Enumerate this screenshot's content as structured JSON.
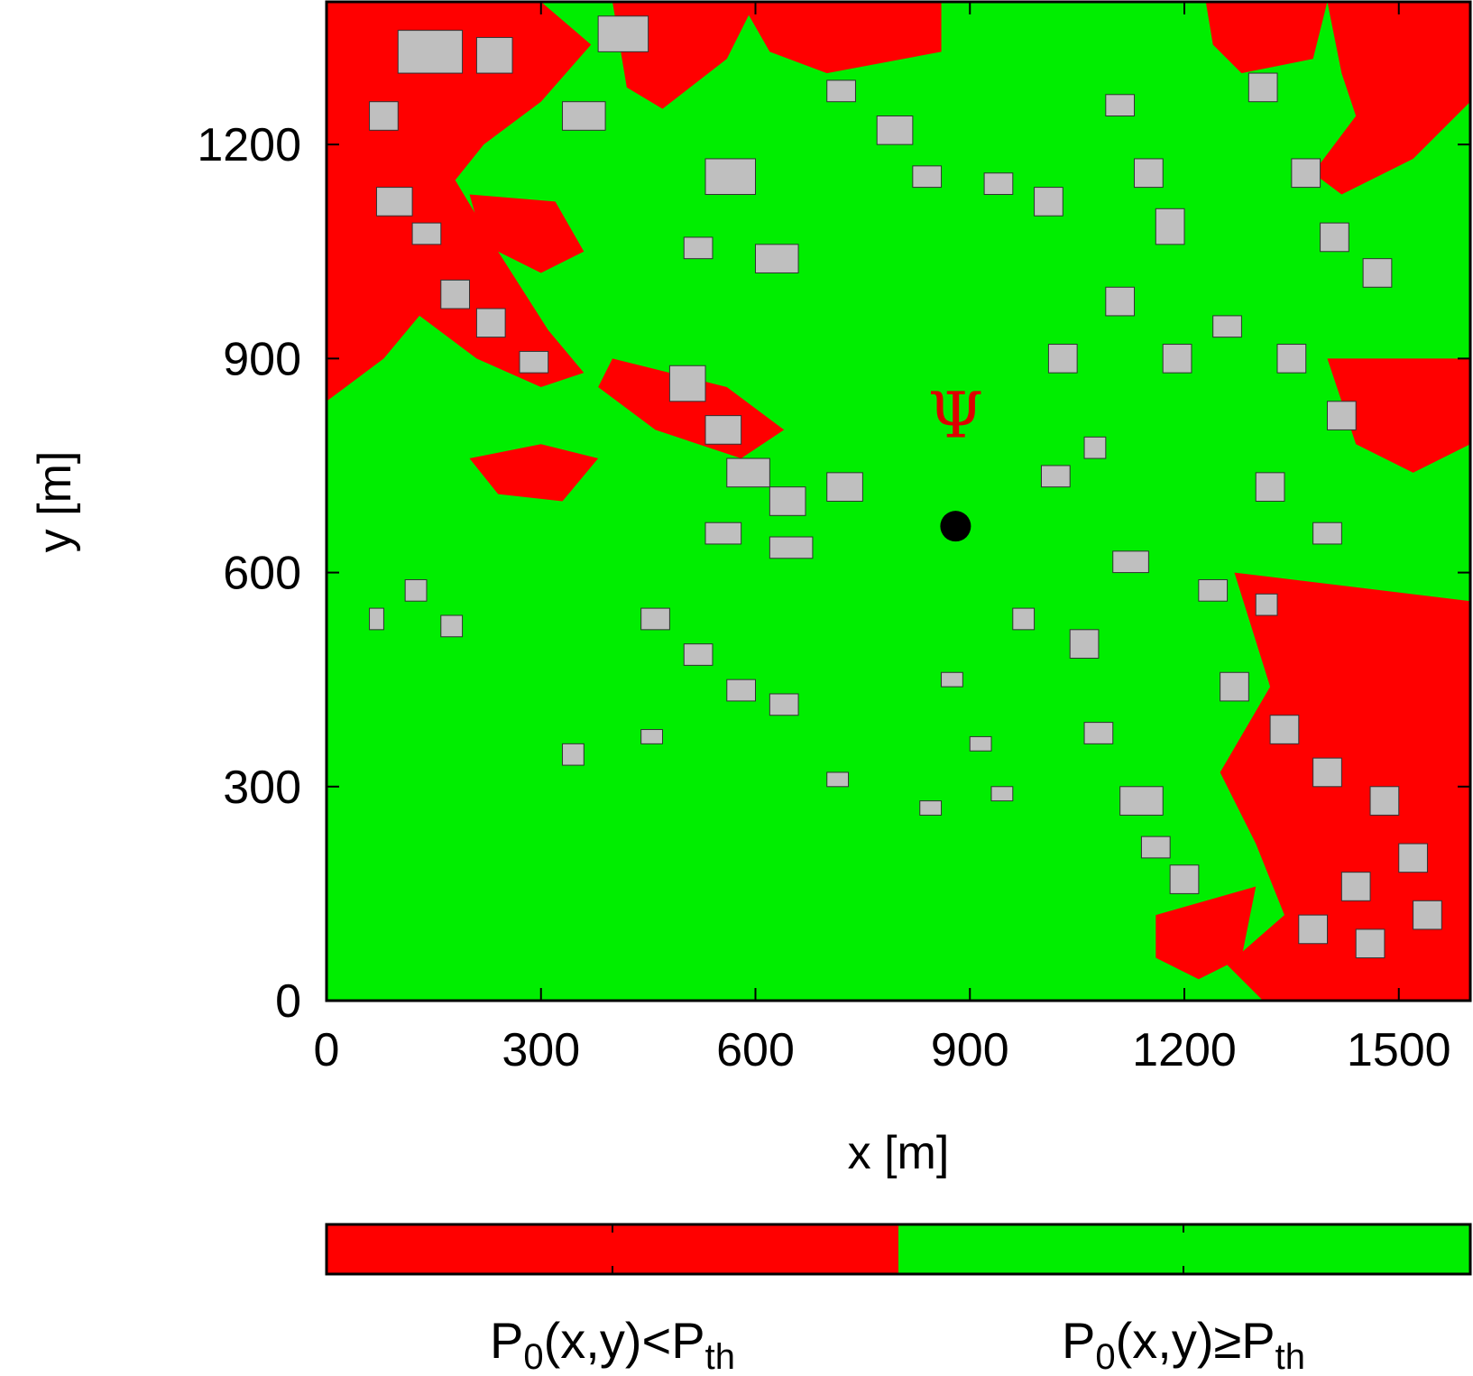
{
  "colors": {
    "below": "#ff0000",
    "above": "#00ee00",
    "building": "#bfbfbf",
    "building_edge": "#333333",
    "transmitter": "#000000",
    "psi": "#dd0000"
  },
  "chart_data": {
    "type": "heatmap",
    "title": "",
    "xlabel": "x [m]",
    "ylabel": "y [m]",
    "xlim": [
      0,
      1600
    ],
    "ylim": [
      0,
      1400
    ],
    "x_ticks": [
      0,
      300,
      600,
      900,
      1200,
      1500
    ],
    "y_ticks": [
      0,
      300,
      600,
      900,
      1200
    ],
    "x_tick_labels": [
      "0",
      "300",
      "600",
      "900",
      "1200",
      "1500"
    ],
    "y_tick_labels": [
      "0",
      "300",
      "600",
      "900",
      "1200"
    ],
    "grid": false,
    "transmitter": {
      "x": 880,
      "y": 665
    },
    "psi_label": {
      "text": "Ψ",
      "x": 880,
      "y": 790
    },
    "red_regions": [
      [
        [
          0,
          1400
        ],
        [
          300,
          1400
        ],
        [
          370,
          1340
        ],
        [
          300,
          1260
        ],
        [
          220,
          1200
        ],
        [
          180,
          1150
        ],
        [
          240,
          1050
        ],
        [
          310,
          940
        ],
        [
          360,
          880
        ],
        [
          300,
          860
        ],
        [
          210,
          900
        ],
        [
          130,
          960
        ],
        [
          80,
          900
        ],
        [
          0,
          840
        ]
      ],
      [
        [
          400,
          1400
        ],
        [
          600,
          1400
        ],
        [
          560,
          1320
        ],
        [
          470,
          1250
        ],
        [
          420,
          1280
        ]
      ],
      [
        [
          200,
          1130
        ],
        [
          320,
          1120
        ],
        [
          360,
          1050
        ],
        [
          300,
          1020
        ],
        [
          220,
          1060
        ]
      ],
      [
        [
          400,
          900
        ],
        [
          560,
          860
        ],
        [
          640,
          800
        ],
        [
          580,
          760
        ],
        [
          460,
          800
        ],
        [
          380,
          860
        ]
      ],
      [
        [
          200,
          760
        ],
        [
          300,
          780
        ],
        [
          380,
          760
        ],
        [
          330,
          700
        ],
        [
          240,
          710
        ]
      ],
      [
        [
          580,
          1400
        ],
        [
          860,
          1400
        ],
        [
          860,
          1330
        ],
        [
          700,
          1300
        ],
        [
          620,
          1330
        ]
      ],
      [
        [
          1230,
          1400
        ],
        [
          1400,
          1400
        ],
        [
          1380,
          1320
        ],
        [
          1280,
          1300
        ],
        [
          1240,
          1340
        ]
      ],
      [
        [
          1400,
          1400
        ],
        [
          1600,
          1400
        ],
        [
          1600,
          1260
        ],
        [
          1520,
          1180
        ],
        [
          1420,
          1130
        ],
        [
          1380,
          1160
        ],
        [
          1440,
          1240
        ],
        [
          1420,
          1300
        ]
      ],
      [
        [
          1400,
          900
        ],
        [
          1600,
          900
        ],
        [
          1600,
          780
        ],
        [
          1520,
          740
        ],
        [
          1440,
          780
        ]
      ],
      [
        [
          1270,
          600
        ],
        [
          1600,
          560
        ],
        [
          1600,
          0
        ],
        [
          1310,
          0
        ],
        [
          1260,
          50
        ],
        [
          1340,
          120
        ],
        [
          1300,
          220
        ],
        [
          1250,
          320
        ],
        [
          1320,
          440
        ]
      ],
      [
        [
          1160,
          120
        ],
        [
          1300,
          160
        ],
        [
          1280,
          60
        ],
        [
          1220,
          30
        ],
        [
          1160,
          60
        ]
      ]
    ],
    "buildings": [
      [
        100,
        1300,
        90,
        60
      ],
      [
        210,
        1300,
        50,
        50
      ],
      [
        380,
        1330,
        70,
        50
      ],
      [
        330,
        1220,
        60,
        40
      ],
      [
        60,
        1220,
        40,
        40
      ],
      [
        70,
        1100,
        50,
        40
      ],
      [
        120,
        1060,
        40,
        30
      ],
      [
        160,
        970,
        40,
        40
      ],
      [
        210,
        930,
        40,
        40
      ],
      [
        270,
        880,
        40,
        30
      ],
      [
        530,
        1130,
        70,
        50
      ],
      [
        500,
        1040,
        40,
        30
      ],
      [
        600,
        1020,
        60,
        40
      ],
      [
        700,
        1260,
        40,
        30
      ],
      [
        770,
        1200,
        50,
        40
      ],
      [
        820,
        1140,
        40,
        30
      ],
      [
        920,
        1130,
        40,
        30
      ],
      [
        990,
        1100,
        40,
        40
      ],
      [
        1090,
        1240,
        40,
        30
      ],
      [
        1130,
        1140,
        40,
        40
      ],
      [
        1160,
        1060,
        40,
        50
      ],
      [
        1290,
        1260,
        40,
        40
      ],
      [
        1350,
        1140,
        40,
        40
      ],
      [
        1390,
        1050,
        40,
        40
      ],
      [
        1450,
        1000,
        40,
        40
      ],
      [
        1240,
        930,
        40,
        30
      ],
      [
        1330,
        880,
        40,
        40
      ],
      [
        1400,
        800,
        40,
        40
      ],
      [
        480,
        840,
        50,
        50
      ],
      [
        530,
        780,
        50,
        40
      ],
      [
        560,
        720,
        60,
        40
      ],
      [
        620,
        680,
        50,
        40
      ],
      [
        700,
        700,
        50,
        40
      ],
      [
        530,
        640,
        50,
        30
      ],
      [
        620,
        620,
        60,
        30
      ],
      [
        1010,
        880,
        40,
        40
      ],
      [
        1090,
        960,
        40,
        40
      ],
      [
        1170,
        880,
        40,
        40
      ],
      [
        1300,
        700,
        40,
        40
      ],
      [
        1380,
        640,
        40,
        30
      ],
      [
        1100,
        600,
        50,
        30
      ],
      [
        1040,
        480,
        40,
        40
      ],
      [
        1060,
        360,
        40,
        30
      ],
      [
        1110,
        260,
        60,
        40
      ],
      [
        1140,
        200,
        40,
        30
      ],
      [
        1180,
        150,
        40,
        40
      ],
      [
        1250,
        420,
        40,
        40
      ],
      [
        1320,
        360,
        40,
        40
      ],
      [
        1380,
        300,
        40,
        40
      ],
      [
        1460,
        260,
        40,
        40
      ],
      [
        1500,
        180,
        40,
        40
      ],
      [
        1420,
        140,
        40,
        40
      ],
      [
        1360,
        80,
        40,
        40
      ],
      [
        1440,
        60,
        40,
        40
      ],
      [
        1520,
        100,
        40,
        40
      ],
      [
        440,
        520,
        40,
        30
      ],
      [
        500,
        470,
        40,
        30
      ],
      [
        560,
        420,
        40,
        30
      ],
      [
        620,
        400,
        40,
        30
      ],
      [
        700,
        300,
        30,
        20
      ],
      [
        830,
        260,
        30,
        20
      ],
      [
        930,
        280,
        30,
        20
      ],
      [
        440,
        360,
        30,
        20
      ],
      [
        330,
        330,
        30,
        30
      ],
      [
        110,
        560,
        30,
        30
      ],
      [
        160,
        510,
        30,
        30
      ],
      [
        60,
        520,
        20,
        30
      ],
      [
        860,
        440,
        30,
        20
      ],
      [
        960,
        520,
        30,
        30
      ],
      [
        900,
        350,
        30,
        20
      ],
      [
        1220,
        560,
        40,
        30
      ],
      [
        1300,
        540,
        30,
        30
      ],
      [
        1000,
        720,
        40,
        30
      ],
      [
        1060,
        760,
        30,
        30
      ]
    ]
  },
  "legend": {
    "left": {
      "main": "P",
      "sub1": "0",
      "mid": "(x,y)<P",
      "sub2": "th"
    },
    "right": {
      "main": "P",
      "sub1": "0",
      "mid": "(x,y)≥P",
      "sub2": "th"
    }
  }
}
